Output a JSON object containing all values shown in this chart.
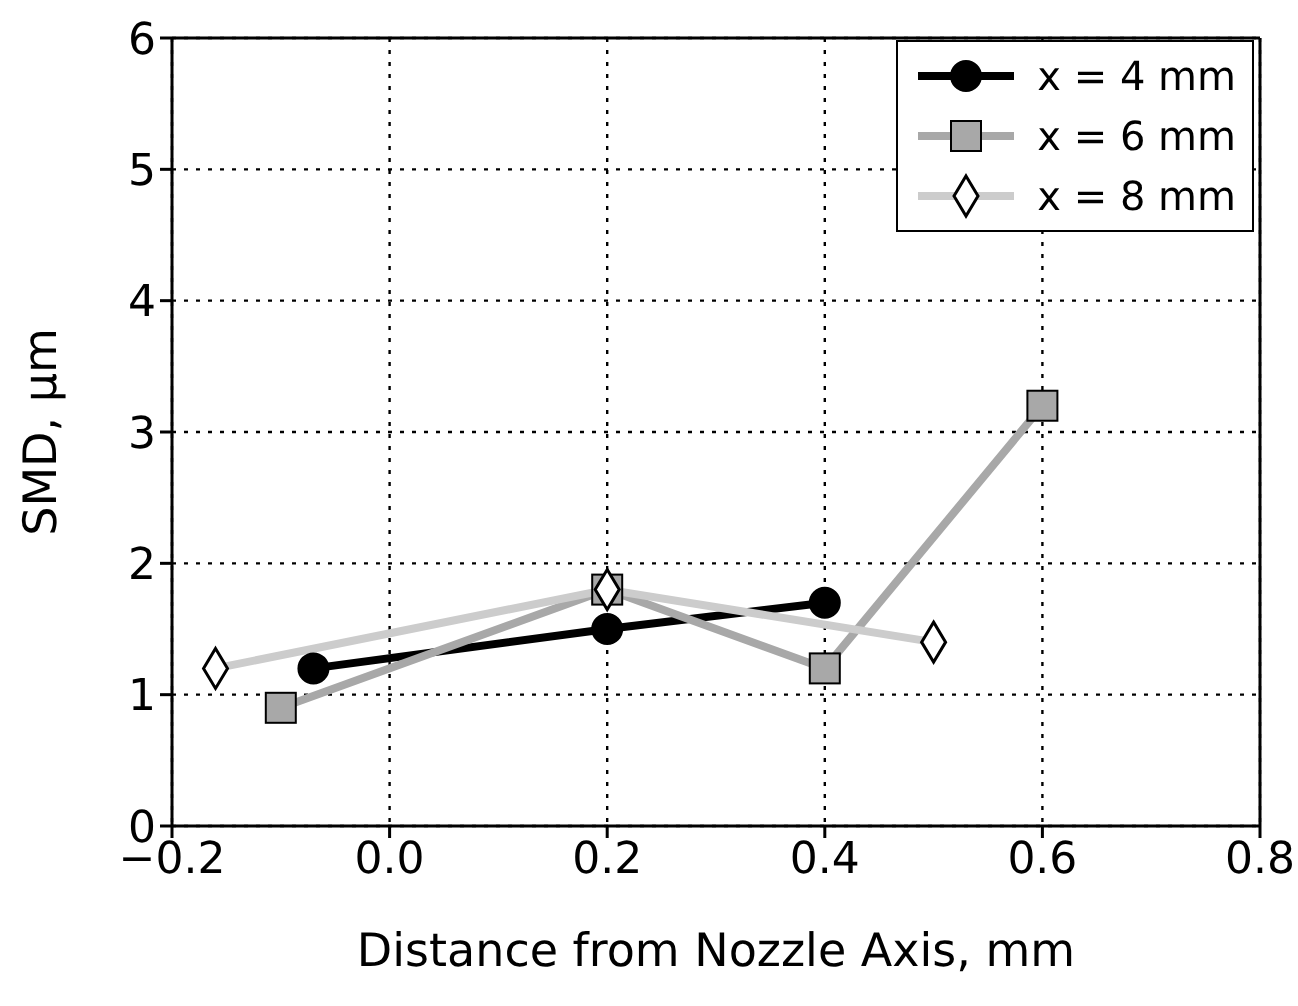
{
  "chart_data": {
    "type": "line",
    "xlabel": "Distance from Nozzle Axis, mm",
    "ylabel": "SMD, μm",
    "xlim": [
      -0.2,
      0.8
    ],
    "xticks": [
      {
        "value": -0.2,
        "label": "−0.2"
      },
      {
        "value": 0,
        "label": "0.0"
      },
      {
        "value": 0.2,
        "label": "0.2"
      },
      {
        "value": 0.4,
        "label": "0.4"
      },
      {
        "value": 0.6,
        "label": "0.6"
      },
      {
        "value": 0.8,
        "label": "0.8"
      }
    ],
    "ylim": [
      0,
      6
    ],
    "yticks": [
      0,
      1,
      2,
      3,
      4,
      5,
      6
    ],
    "grid": true,
    "legend": "top right",
    "line_style": "solid",
    "series": [
      {
        "name": "x = 4 mm",
        "color": "#000000",
        "marker": "circle",
        "x": [
          -0.07,
          0.2,
          0.4
        ],
        "values": [
          1.2,
          1.5,
          1.7
        ]
      },
      {
        "name": "x = 6 mm",
        "color": "#a8a8a8",
        "marker": "square",
        "x": [
          -0.1,
          0.2,
          0.4,
          0.6
        ],
        "values": [
          0.9,
          1.8,
          1.2,
          3.2
        ]
      },
      {
        "name": "x = 8 mm",
        "color": "#cccccc",
        "marker": "diamond",
        "x": [
          -0.16,
          0.2,
          0.5
        ],
        "values": [
          1.2,
          1.8,
          1.4
        ]
      }
    ]
  }
}
